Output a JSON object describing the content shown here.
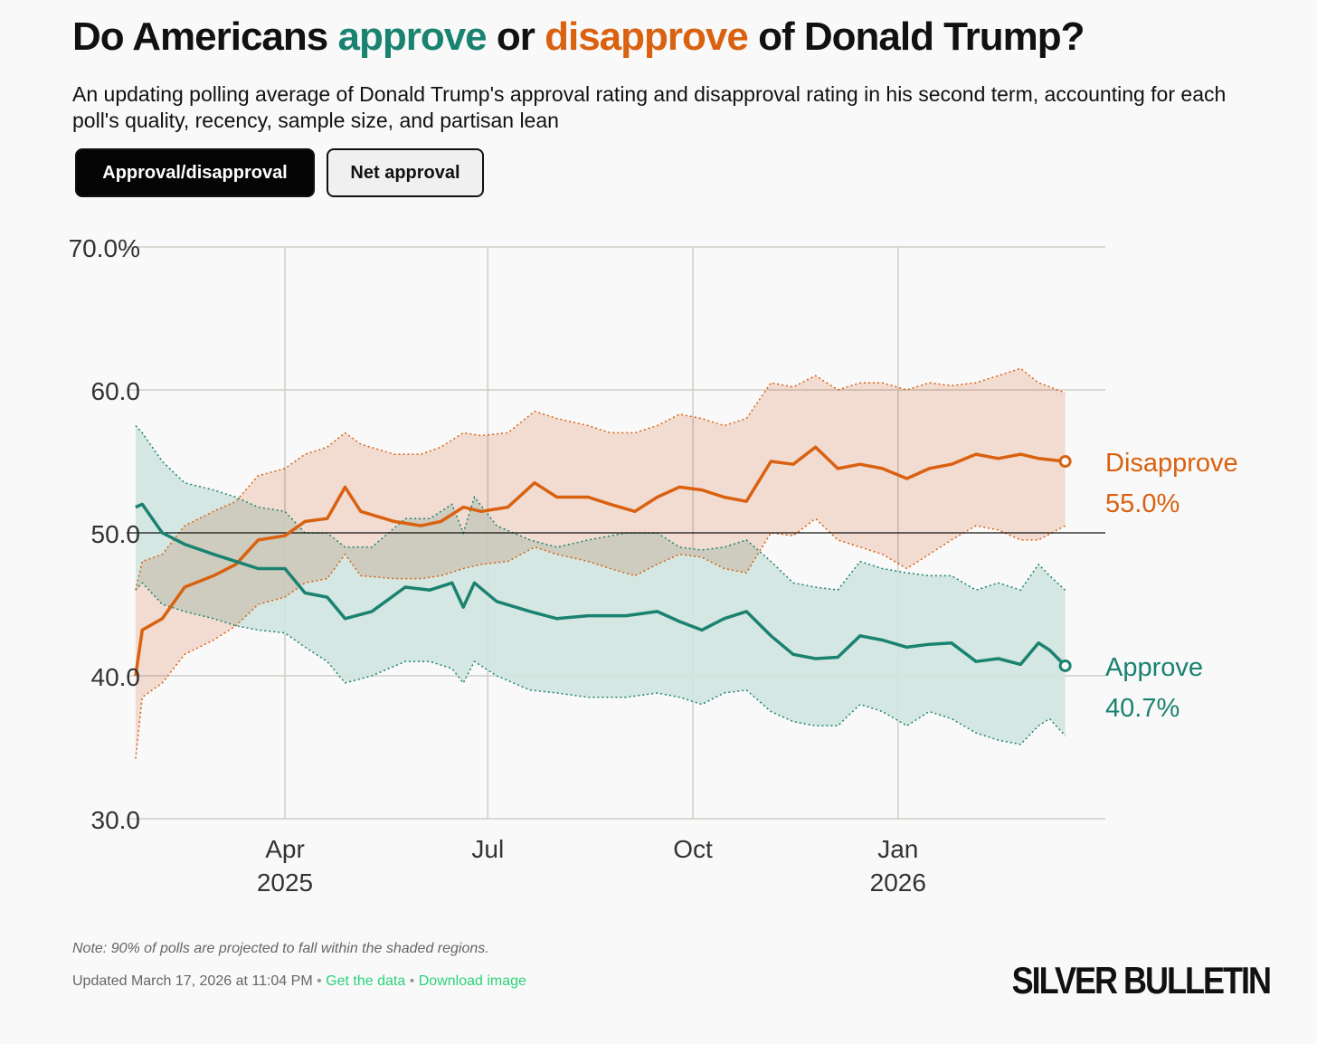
{
  "header": {
    "title_part1": "Do Americans ",
    "title_approve": "approve",
    "title_part2": " or ",
    "title_disapprove": "disapprove",
    "title_part3": " of Donald Trump?",
    "subtitle": "An updating polling average of Donald Trump's approval rating and disapproval rating in his second term, accounting for each poll's quality, recency, sample size, and partisan lean"
  },
  "toggles": {
    "approval_label": "Approval/disapproval",
    "net_label": "Net approval",
    "selected": "Approval/disapproval"
  },
  "colors": {
    "approve": "#1a8270",
    "disapprove": "#d9610f",
    "approve_band": "#cfe4df",
    "disapprove_band": "#f6d8ca",
    "overlap_band": "#d9c7b6"
  },
  "chart_data": {
    "type": "line",
    "x_type": "date",
    "x_range": [
      "2025-01-20",
      "2026-04-04"
    ],
    "ylim": [
      30,
      70
    ],
    "y_ticks": [
      30,
      40,
      50,
      60,
      70
    ],
    "y_tick_labels": [
      "30.0",
      "40.0",
      "50.0",
      "60.0",
      "70.0%"
    ],
    "x_ticks": [
      {
        "date": "2025-04-01",
        "label": "Apr",
        "year": "2025"
      },
      {
        "date": "2025-07-01",
        "label": "Jul",
        "year": ""
      },
      {
        "date": "2025-10-01",
        "label": "Oct",
        "year": ""
      },
      {
        "date": "2026-01-01",
        "label": "Jan",
        "year": "2026"
      }
    ],
    "reference_line": 50,
    "grid": true,
    "series": [
      {
        "name": "Disapprove",
        "end_label_value": "55.0%",
        "points": [
          [
            "2025-01-24",
            40.0,
            34.2,
            46.0
          ],
          [
            "2025-01-27",
            43.2,
            38.5,
            48.0
          ],
          [
            "2025-02-05",
            44.0,
            39.5,
            48.5
          ],
          [
            "2025-02-15",
            46.2,
            41.5,
            50.5
          ],
          [
            "2025-02-28",
            47.0,
            42.5,
            51.5
          ],
          [
            "2025-03-10",
            47.8,
            43.5,
            52.2
          ],
          [
            "2025-03-20",
            49.5,
            45.0,
            54.0
          ],
          [
            "2025-04-01",
            49.8,
            45.5,
            54.5
          ],
          [
            "2025-04-10",
            50.8,
            46.5,
            55.5
          ],
          [
            "2025-04-20",
            51.0,
            46.8,
            56.0
          ],
          [
            "2025-04-28",
            53.2,
            48.5,
            57.0
          ],
          [
            "2025-05-05",
            51.5,
            47.0,
            56.2
          ],
          [
            "2025-05-20",
            50.8,
            46.8,
            55.5
          ],
          [
            "2025-06-01",
            50.5,
            46.8,
            55.5
          ],
          [
            "2025-06-10",
            50.8,
            47.0,
            56.0
          ],
          [
            "2025-06-20",
            51.8,
            47.5,
            57.0
          ],
          [
            "2025-06-28",
            51.5,
            47.8,
            56.8
          ],
          [
            "2025-07-10",
            51.8,
            48.0,
            57.0
          ],
          [
            "2025-07-22",
            53.5,
            49.0,
            58.5
          ],
          [
            "2025-08-01",
            52.5,
            48.5,
            58.0
          ],
          [
            "2025-08-15",
            52.5,
            48.0,
            57.5
          ],
          [
            "2025-08-25",
            52.0,
            47.5,
            57.0
          ],
          [
            "2025-09-05",
            51.5,
            47.0,
            57.0
          ],
          [
            "2025-09-15",
            52.5,
            47.8,
            57.5
          ],
          [
            "2025-09-25",
            53.2,
            48.5,
            58.3
          ],
          [
            "2025-10-05",
            53.0,
            48.3,
            58.0
          ],
          [
            "2025-10-15",
            52.5,
            47.5,
            57.5
          ],
          [
            "2025-10-25",
            52.2,
            47.2,
            58.0
          ],
          [
            "2025-11-05",
            55.0,
            50.0,
            60.5
          ],
          [
            "2025-11-15",
            54.8,
            49.8,
            60.2
          ],
          [
            "2025-11-25",
            56.0,
            51.0,
            61.0
          ],
          [
            "2025-12-05",
            54.5,
            49.5,
            60.0
          ],
          [
            "2025-12-15",
            54.8,
            49.0,
            60.5
          ],
          [
            "2025-12-25",
            54.5,
            48.5,
            60.5
          ],
          [
            "2026-01-05",
            53.8,
            47.5,
            60.0
          ],
          [
            "2026-01-15",
            54.5,
            48.5,
            60.5
          ],
          [
            "2026-01-25",
            54.8,
            49.5,
            60.3
          ],
          [
            "2026-02-05",
            55.5,
            50.5,
            60.5
          ],
          [
            "2026-02-15",
            55.2,
            50.2,
            61.0
          ],
          [
            "2026-02-25",
            55.5,
            49.5,
            61.5
          ],
          [
            "2026-03-05",
            55.2,
            49.5,
            60.5
          ],
          [
            "2026-03-17",
            55.0,
            50.5,
            59.8
          ]
        ]
      },
      {
        "name": "Approve",
        "end_label_value": "40.7%",
        "points": [
          [
            "2025-01-24",
            51.8,
            46.0,
            57.5
          ],
          [
            "2025-01-27",
            52.0,
            46.5,
            57.0
          ],
          [
            "2025-02-05",
            50.0,
            45.0,
            55.0
          ],
          [
            "2025-02-15",
            49.2,
            44.5,
            53.5
          ],
          [
            "2025-02-28",
            48.5,
            44.0,
            53.0
          ],
          [
            "2025-03-10",
            48.0,
            43.5,
            52.5
          ],
          [
            "2025-03-20",
            47.5,
            43.2,
            51.8
          ],
          [
            "2025-04-01",
            47.5,
            43.0,
            51.5
          ],
          [
            "2025-04-10",
            45.8,
            42.0,
            50.0
          ],
          [
            "2025-04-20",
            45.5,
            41.0,
            50.0
          ],
          [
            "2025-04-28",
            44.0,
            39.5,
            49.0
          ],
          [
            "2025-05-10",
            44.5,
            40.0,
            49.0
          ],
          [
            "2025-05-25",
            46.2,
            41.0,
            51.0
          ],
          [
            "2025-06-05",
            46.0,
            41.0,
            51.0
          ],
          [
            "2025-06-15",
            46.5,
            40.5,
            52.0
          ],
          [
            "2025-06-20",
            44.8,
            39.5,
            50.0
          ],
          [
            "2025-06-25",
            46.5,
            41.0,
            52.5
          ],
          [
            "2025-07-05",
            45.2,
            40.0,
            50.5
          ],
          [
            "2025-07-20",
            44.5,
            39.0,
            49.5
          ],
          [
            "2025-08-01",
            44.0,
            38.8,
            49.0
          ],
          [
            "2025-08-15",
            44.2,
            38.5,
            49.5
          ],
          [
            "2025-09-01",
            44.2,
            38.5,
            50.0
          ],
          [
            "2025-09-15",
            44.5,
            38.8,
            50.0
          ],
          [
            "2025-09-25",
            43.8,
            38.5,
            49.0
          ],
          [
            "2025-10-05",
            43.2,
            38.0,
            48.8
          ],
          [
            "2025-10-15",
            44.0,
            38.8,
            49.0
          ],
          [
            "2025-10-25",
            44.5,
            39.0,
            49.5
          ],
          [
            "2025-11-05",
            42.8,
            37.5,
            48.0
          ],
          [
            "2025-11-15",
            41.5,
            36.8,
            46.5
          ],
          [
            "2025-11-25",
            41.2,
            36.5,
            46.2
          ],
          [
            "2025-12-05",
            41.3,
            36.5,
            46.0
          ],
          [
            "2025-12-15",
            42.8,
            38.0,
            48.0
          ],
          [
            "2025-12-25",
            42.5,
            37.5,
            47.5
          ],
          [
            "2026-01-05",
            42.0,
            36.5,
            47.2
          ],
          [
            "2026-01-15",
            42.2,
            37.5,
            47.0
          ],
          [
            "2026-01-25",
            42.3,
            37.0,
            47.0
          ],
          [
            "2026-02-05",
            41.0,
            36.0,
            46.0
          ],
          [
            "2026-02-15",
            41.2,
            35.5,
            46.5
          ],
          [
            "2026-02-25",
            40.8,
            35.2,
            46.0
          ],
          [
            "2026-03-05",
            42.3,
            36.5,
            47.8
          ],
          [
            "2026-03-10",
            41.8,
            37.0,
            47.0
          ],
          [
            "2026-03-17",
            40.7,
            35.8,
            46.0
          ]
        ]
      }
    ]
  },
  "footer": {
    "note": "Note: 90% of polls are projected to fall within the shaded regions.",
    "updated": "Updated March 17, 2026 at 11:04 PM",
    "separator": "•",
    "get_data": "Get the data",
    "download": "Download image",
    "brand": "SILVER BULLETIN"
  }
}
